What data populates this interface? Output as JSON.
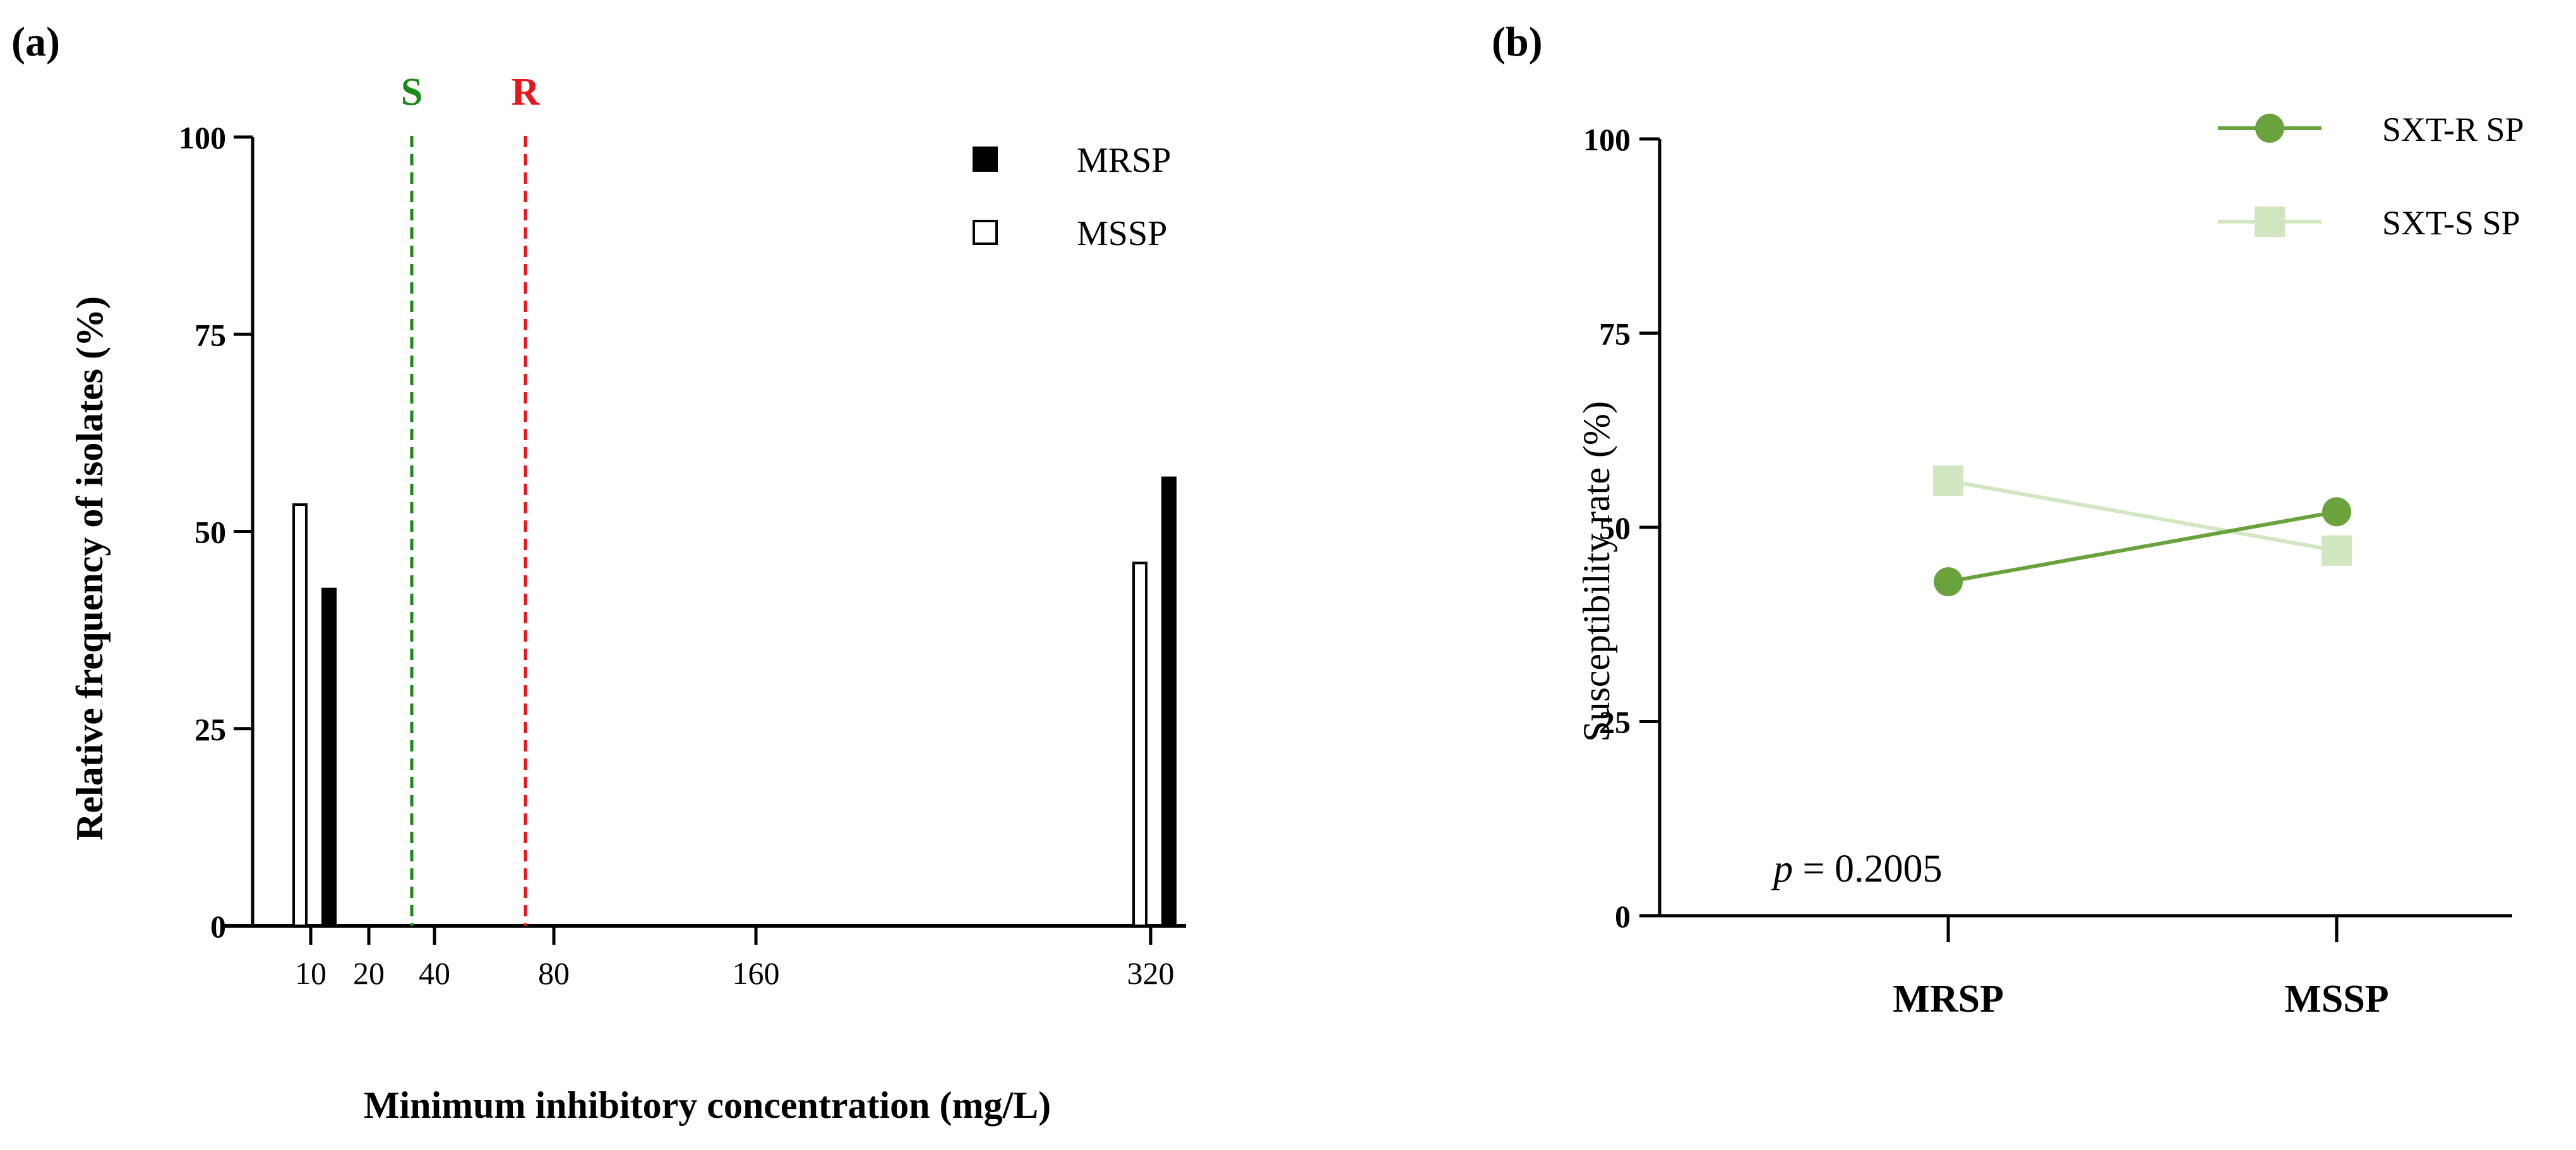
{
  "panels": {
    "a_label": "(a)",
    "b_label": "(b)"
  },
  "chart_data": [
    {
      "id": "a",
      "type": "bar",
      "title": "",
      "xlabel": "Minimum inhibitory concentration (mg/L)",
      "ylabel": "Relative frequency of isolates (%)",
      "ylim": [
        0,
        100
      ],
      "yticks": [
        "0",
        "25",
        "50",
        "75",
        "100"
      ],
      "xticks": [
        "10",
        "20",
        "40",
        "80",
        "160",
        "320"
      ],
      "series": [
        {
          "name": "MSSP",
          "fill": "#ffffff",
          "stroke": "#000000",
          "points": [
            {
              "x": "10",
              "value": 53.4
            },
            {
              "x": "320",
              "value": 46.0
            }
          ]
        },
        {
          "name": "MRSP",
          "fill": "#000000",
          "stroke": "#000000",
          "points": [
            {
              "x": "10",
              "value": 42.7
            },
            {
              "x": "320",
              "value": 56.8
            }
          ]
        }
      ],
      "breakpoints": [
        {
          "label": "S",
          "x": "30",
          "color": "#1a8a1a"
        },
        {
          "label": "R",
          "x": "65",
          "color": "#e8161b"
        }
      ],
      "legend": [
        {
          "label": "MRSP",
          "fill": "#000000"
        },
        {
          "label": "MSSP",
          "fill": "#ffffff"
        }
      ],
      "legend_position": "top-right"
    },
    {
      "id": "b",
      "type": "line",
      "title": "",
      "xlabel": "",
      "ylabel": "Susceptibility rate (%)",
      "ylim": [
        0,
        100
      ],
      "yticks": [
        "0",
        "25",
        "50",
        "75",
        "100"
      ],
      "categories": [
        "MRSP",
        "MSSP"
      ],
      "series": [
        {
          "name": "SXT-R SP",
          "color": "#6aa23e",
          "marker": "circle",
          "values": [
            43,
            52
          ]
        },
        {
          "name": "SXT-S SP",
          "color": "#d2e6c1",
          "marker": "square",
          "values": [
            56,
            47
          ]
        }
      ],
      "annotation": {
        "italic": "p",
        "rest": " = 0.2005"
      },
      "legend_position": "top-right"
    }
  ]
}
